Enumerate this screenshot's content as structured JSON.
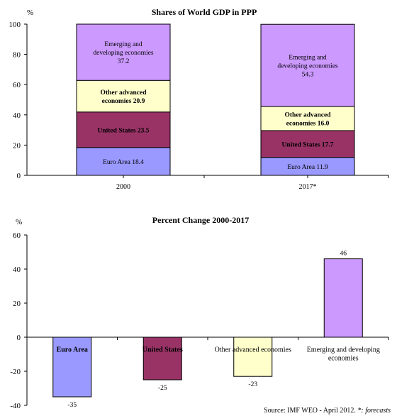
{
  "chart_data": [
    {
      "type": "stacked-bar",
      "title": "Shares of World GDP in PPP",
      "ylabel": "%",
      "ylim": [
        0,
        100
      ],
      "yticks": [
        0,
        20,
        40,
        60,
        80,
        100
      ],
      "categories": [
        "2000",
        "2017*"
      ],
      "grid": false,
      "series": [
        {
          "name": "Euro Area",
          "values": [
            18.4,
            11.9
          ],
          "labels": [
            "Euro Area 18.4",
            "Euro Area 11.9"
          ],
          "color": "#9999ff",
          "bold": false
        },
        {
          "name": "United States",
          "values": [
            23.5,
            17.7
          ],
          "labels": [
            "United States 23.5",
            "United States 17.7"
          ],
          "color": "#993366",
          "bold": true
        },
        {
          "name": "Other advanced economies",
          "values": [
            20.9,
            16.0
          ],
          "labels": [
            "Other advanced|economies 20.9",
            "Other advanced|economies 16.0"
          ],
          "color": "#ffffcc",
          "bold": true
        },
        {
          "name": "Emerging and developing economies",
          "values": [
            37.2,
            54.3
          ],
          "labels": [
            "Emerging and|developing economies|37.2",
            "Emerging and|developing economies|54.3"
          ],
          "color": "#cc99ff",
          "bold": false
        }
      ]
    },
    {
      "type": "bar",
      "title": "Percent Change 2000-2017",
      "ylabel": "%",
      "ylim": [
        -40,
        60
      ],
      "yticks": [
        -40,
        -20,
        0,
        20,
        40,
        60
      ],
      "grid": false,
      "categories": [
        "Euro Area",
        "United States",
        "Other advanced economies",
        "Emerging and developing|economies"
      ],
      "values": [
        -35,
        -25,
        -23,
        46
      ],
      "value_labels": [
        "-35",
        "-25",
        "-23",
        "46"
      ],
      "colors": [
        "#9999ff",
        "#993366",
        "#ffffcc",
        "#cc99ff"
      ],
      "bold_categories": [
        true,
        true,
        false,
        false
      ]
    }
  ],
  "source": {
    "prefix": "Source: IMF WEO - April 2012. ",
    "note": "*: forecasts"
  }
}
